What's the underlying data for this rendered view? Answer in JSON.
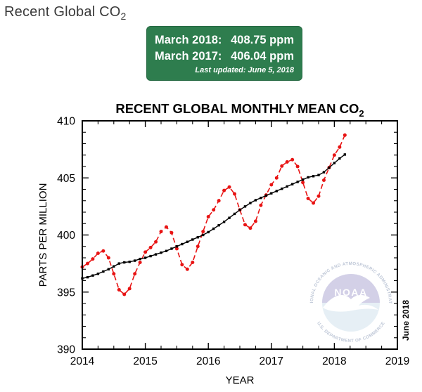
{
  "page": {
    "title": "Recent Global CO2",
    "title_main": "Recent Global CO",
    "title_sub": "2",
    "title_color": "#3b3b3b"
  },
  "info_box": {
    "bg_color": "#2e7d4e",
    "text_color": "#ffffff",
    "rows": [
      {
        "label": "March 2018:",
        "value": "408.75 ppm"
      },
      {
        "label": "March 2017:",
        "value": "406.04 ppm"
      }
    ],
    "updated": "Last updated: June 5, 2018"
  },
  "noaa_logo": {
    "acronym": "NOAA",
    "ring_top": "NATIONAL OCEANIC AND ATMOSPHERIC ADMINISTRATION",
    "ring_bottom": "U.S. DEPARTMENT OF COMMERCE",
    "top_color": "#a9a2d0",
    "bottom_color": "#cfe1ec"
  },
  "chart_data": {
    "type": "line",
    "title": "RECENT GLOBAL MONTHLY MEAN CO2",
    "title_main": "RECENT GLOBAL MONTHLY MEAN CO",
    "title_sub": "2",
    "xlabel": "YEAR",
    "ylabel": "PARTS PER MILLION",
    "xlim": [
      2014,
      2019
    ],
    "ylim": [
      390,
      410
    ],
    "x_major_ticks": [
      2014,
      2015,
      2016,
      2017,
      2018,
      2019
    ],
    "x_minor_step": 0.25,
    "y_major_ticks": [
      390,
      395,
      400,
      405,
      410
    ],
    "y_minor_step": 1,
    "grid": false,
    "legend": "none",
    "side_note": "June 2018",
    "series": [
      {
        "id": "monthly-mean",
        "name": "monthly_mean",
        "color": "#e81414",
        "line_style": "dashed",
        "line_width": 1.6,
        "marker": "circle",
        "start_year": 2014,
        "start_month": 1,
        "values": [
          397.2,
          397.5,
          397.9,
          398.4,
          398.6,
          398.0,
          396.6,
          395.2,
          394.8,
          395.3,
          396.6,
          397.6,
          398.5,
          398.9,
          399.4,
          400.3,
          400.7,
          400.2,
          398.8,
          397.4,
          397.0,
          397.6,
          399.0,
          400.3,
          401.6,
          402.2,
          403.0,
          403.9,
          404.2,
          403.6,
          402.2,
          400.9,
          400.6,
          401.2,
          402.6,
          403.5,
          404.4,
          405.0,
          406.04,
          406.4,
          406.6,
          406.0,
          404.6,
          403.2,
          402.8,
          403.4,
          404.8,
          405.9,
          407.0,
          407.7,
          408.75
        ]
      },
      {
        "id": "trend",
        "name": "trend_seasonally_corrected",
        "color": "#000000",
        "line_style": "solid",
        "line_width": 1.4,
        "marker": "square",
        "start_year": 2014,
        "start_month": 1,
        "values": [
          396.2,
          396.3,
          396.45,
          396.6,
          396.8,
          397.0,
          397.25,
          397.5,
          397.6,
          397.65,
          397.75,
          397.9,
          398.0,
          398.15,
          398.3,
          398.45,
          398.6,
          398.8,
          399.0,
          399.2,
          399.4,
          399.6,
          399.8,
          400.0,
          400.25,
          400.55,
          400.85,
          401.15,
          401.5,
          401.85,
          402.2,
          402.5,
          402.8,
          403.05,
          403.25,
          403.45,
          403.65,
          403.85,
          404.05,
          404.25,
          404.45,
          404.65,
          404.85,
          405.05,
          405.15,
          405.25,
          405.5,
          405.9,
          406.3,
          406.7,
          407.05
        ]
      }
    ]
  }
}
